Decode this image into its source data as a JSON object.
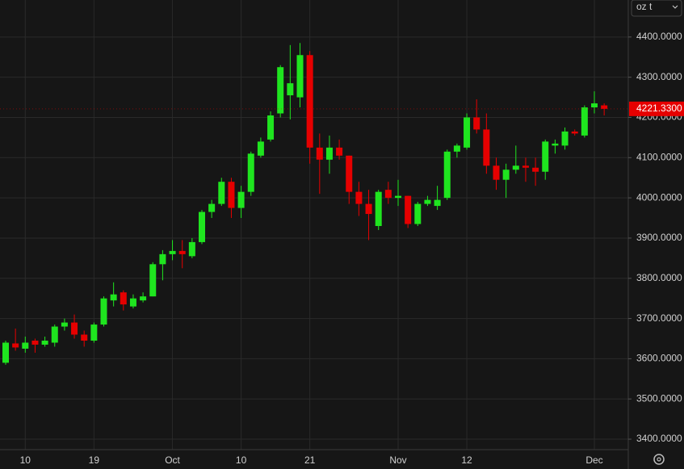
{
  "chart_data": {
    "type": "candlestick",
    "categories": [
      null,
      null,
      "10",
      null,
      null,
      null,
      null,
      null,
      null,
      "19",
      null,
      null,
      null,
      null,
      null,
      null,
      null,
      "Oct",
      null,
      null,
      null,
      null,
      null,
      null,
      "10",
      null,
      null,
      null,
      null,
      null,
      null,
      "21",
      null,
      null,
      null,
      null,
      null,
      null,
      null,
      null,
      "Nov",
      null,
      null,
      null,
      null,
      null,
      null,
      "12",
      null,
      null,
      null,
      null,
      null,
      null,
      null,
      null,
      null,
      null,
      null,
      null,
      "Dec",
      null
    ],
    "open": [
      3590,
      3638,
      3625,
      3645,
      3635,
      3640,
      3680,
      3690,
      3660,
      3645,
      3685,
      3745,
      3765,
      3730,
      3745,
      3755,
      3835,
      3860,
      3868,
      3855,
      3890,
      3965,
      3985,
      4040,
      3975,
      4015,
      4105,
      4145,
      4210,
      4255,
      4250,
      4355,
      4125,
      4095,
      4125,
      4105,
      4015,
      3985,
      3930,
      4020,
      4000,
      4005,
      3935,
      3985,
      3980,
      4000,
      4115,
      4125,
      4200,
      4170,
      4080,
      4045,
      4070,
      4080,
      4075,
      4065,
      4130,
      4130,
      4165,
      4155,
      4225,
      4230
    ],
    "high": [
      3645,
      3675,
      3655,
      3650,
      3655,
      3685,
      3700,
      3710,
      3670,
      3690,
      3755,
      3790,
      3770,
      3760,
      3765,
      3840,
      3870,
      3895,
      3895,
      3900,
      3970,
      3995,
      4050,
      4050,
      4030,
      4115,
      4150,
      4215,
      4330,
      4380,
      4385,
      4365,
      4160,
      4155,
      4145,
      4105,
      4040,
      4020,
      4020,
      4040,
      4045,
      4005,
      3990,
      4005,
      4030,
      4120,
      4135,
      4210,
      4245,
      4210,
      4100,
      4085,
      4130,
      4100,
      4100,
      4145,
      4145,
      4175,
      4170,
      4230,
      4265,
      4235
    ],
    "low": [
      3585,
      3620,
      3615,
      3615,
      3630,
      3630,
      3670,
      3650,
      3630,
      3640,
      3680,
      3730,
      3720,
      3725,
      3740,
      3755,
      3795,
      3845,
      3825,
      3850,
      3885,
      3950,
      3980,
      3950,
      3950,
      4005,
      4100,
      4140,
      4200,
      4195,
      4225,
      4085,
      4010,
      4060,
      4095,
      3985,
      3955,
      3895,
      3920,
      3985,
      3980,
      3925,
      3930,
      3980,
      3970,
      3995,
      4100,
      4120,
      4160,
      4060,
      4020,
      4000,
      4060,
      4040,
      4030,
      4045,
      4110,
      4120,
      4155,
      4150,
      4210,
      4205
    ],
    "close": [
      3640,
      3628,
      3640,
      3635,
      3645,
      3680,
      3690,
      3660,
      3645,
      3685,
      3750,
      3760,
      3735,
      3750,
      3755,
      3835,
      3860,
      3868,
      3860,
      3890,
      3965,
      3985,
      4040,
      3975,
      4015,
      4110,
      4140,
      4205,
      4325,
      4285,
      4355,
      4125,
      4095,
      4125,
      4105,
      4015,
      3985,
      3960,
      4015,
      4000,
      4005,
      3935,
      3985,
      3995,
      3995,
      4115,
      4130,
      4200,
      4170,
      4080,
      4045,
      4070,
      4080,
      4075,
      4065,
      4140,
      4135,
      4165,
      4160,
      4225,
      4235,
      4221.33
    ],
    "up_color": "#1fe51f",
    "down_color": "#e60000",
    "ylim": [
      3374,
      4492
    ],
    "yticks": [
      {
        "value": 3400,
        "label": "3400.0000"
      },
      {
        "value": 3500,
        "label": "3500.0000"
      },
      {
        "value": 3600,
        "label": "3600.0000"
      },
      {
        "value": 3700,
        "label": "3700.0000"
      },
      {
        "value": 3800,
        "label": "3800.0000"
      },
      {
        "value": 3900,
        "label": "3900.0000"
      },
      {
        "value": 4000,
        "label": "4000.0000"
      },
      {
        "value": 4100,
        "label": "4100.0000"
      },
      {
        "value": 4200,
        "label": "4200.0000"
      },
      {
        "value": 4300,
        "label": "4300.0000"
      },
      {
        "value": 4400,
        "label": "4400.0000"
      }
    ],
    "last_price": {
      "value": 4221.33,
      "label": "4221.3300"
    },
    "grid": true
  },
  "unit_selector": "oz t"
}
